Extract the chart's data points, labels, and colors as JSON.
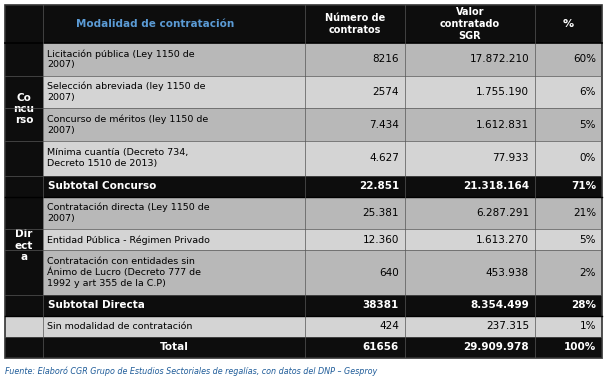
{
  "header_bg": "#0D0D0D",
  "header_text_color": "#5B9BD5",
  "header_num_color": "#FFFFFF",
  "group_label_bg": "#0D0D0D",
  "group_label_color": "#FFFFFF",
  "subtotal_bg": "#0D0D0D",
  "subtotal_text": "#FFFFFF",
  "row_bg_alt1": "#B8B8B8",
  "row_bg_alt2": "#D8D8D8",
  "outer_bg": "#FFFFFF",
  "border_color": "#000000",
  "footnote_color": "#1F5C99",
  "footnote_text": "Fuente: Elaboró CGR Grupo de Estudios Sectoriales de regalías, con datos del DNP – Gesproy",
  "col_headers": [
    "Modalidad de contratación",
    "Número de\ncontratos",
    "Valor\ncontratado\nSGR",
    "%"
  ],
  "rows": [
    {
      "modalidad": "Licitación pública (Ley 1150 de\n2007)",
      "contratos": "8216",
      "valor": "17.872.210",
      "pct": "60%",
      "bg": "#B8B8B8",
      "bold": false,
      "group": "concurso"
    },
    {
      "modalidad": "Selección abreviada (ley 1150 de\n2007)",
      "contratos": "2574",
      "valor": "1.755.190",
      "pct": "6%",
      "bg": "#D4D4D4",
      "bold": false,
      "group": "concurso"
    },
    {
      "modalidad": "Concurso de méritos (ley 1150 de\n2007)",
      "contratos": "7.434",
      "valor": "1.612.831",
      "pct": "5%",
      "bg": "#B8B8B8",
      "bold": false,
      "group": "concurso"
    },
    {
      "modalidad": "Mínima cuantía (Decreto 734,\nDecreto 1510 de 2013)",
      "contratos": "4.627",
      "valor": "77.933",
      "pct": "0%",
      "bg": "#D4D4D4",
      "bold": false,
      "group": "concurso"
    },
    {
      "modalidad": "Subtotal Concurso",
      "contratos": "22.851",
      "valor": "21.318.164",
      "pct": "71%",
      "bg": "#0D0D0D",
      "bold": true,
      "group": "subtotal_concurso"
    },
    {
      "modalidad": "Contratación directa (Ley 1150 de\n2007)",
      "contratos": "25.381",
      "valor": "6.287.291",
      "pct": "21%",
      "bg": "#B8B8B8",
      "bold": false,
      "group": "directa"
    },
    {
      "modalidad": "Entidad Pública - Régimen Privado",
      "contratos": "12.360",
      "valor": "1.613.270",
      "pct": "5%",
      "bg": "#D4D4D4",
      "bold": false,
      "group": "directa"
    },
    {
      "modalidad": "Contratación con entidades sin\nÁnimo de Lucro (Decreto 777 de\n1992 y art 355 de la C.P)",
      "contratos": "640",
      "valor": "453.938",
      "pct": "2%",
      "bg": "#B8B8B8",
      "bold": false,
      "group": "directa"
    },
    {
      "modalidad": "Subtotal Directa",
      "contratos": "38381",
      "valor": "8.354.499",
      "pct": "28%",
      "bg": "#0D0D0D",
      "bold": true,
      "group": "subtotal_directa"
    },
    {
      "modalidad": "Sin modalidad de contratación",
      "contratos": "424",
      "valor": "237.315",
      "pct": "1%",
      "bg": "#D4D4D4",
      "bold": false,
      "group": "sin"
    },
    {
      "modalidad": "Total",
      "contratos": "61656",
      "valor": "29.909.978",
      "pct": "100%",
      "bg": "#0D0D0D",
      "bold": true,
      "group": "total"
    }
  ]
}
